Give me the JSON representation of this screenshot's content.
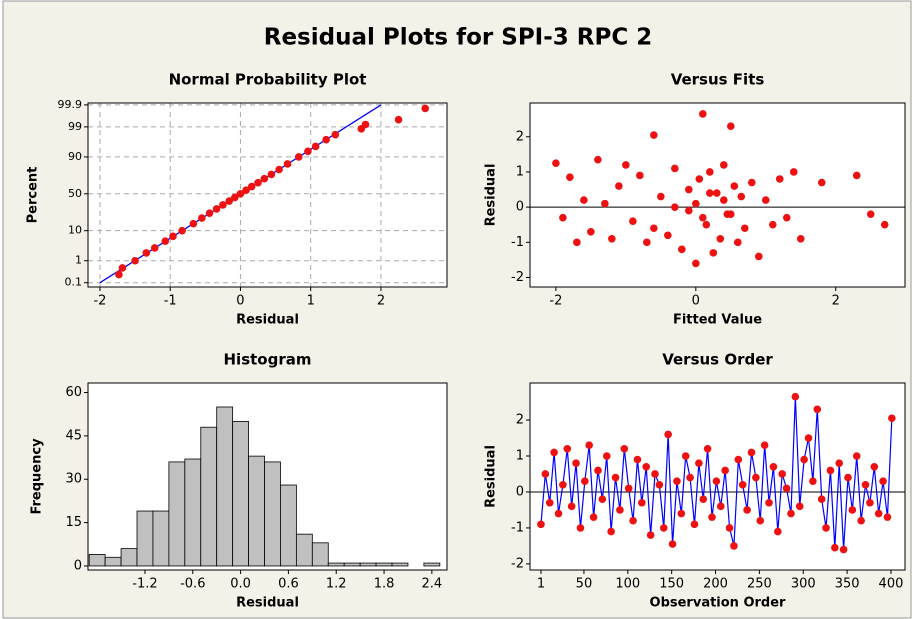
{
  "title": "Residual Plots for SPI-3 RPC 2",
  "chart_data": [
    {
      "type": "scatter",
      "title": "Normal Probability Plot",
      "x_label": "Residual",
      "y_label": "Percent",
      "yscale": "normal-probability",
      "grid": true,
      "color": "#ee1111",
      "xlim": [
        -2.17,
        2.94
      ],
      "ylim": [
        0.06,
        99.92
      ],
      "xticks": [
        -2,
        -1,
        0,
        1,
        2
      ],
      "yticks": [
        0.1,
        1,
        10,
        50,
        90,
        99,
        99.9
      ],
      "x": [
        -1.73,
        -1.68,
        -1.5,
        -1.34,
        -1.22,
        -1.07,
        -0.96,
        -0.83,
        -0.67,
        -0.55,
        -0.44,
        -0.34,
        -0.25,
        -0.16,
        -0.08,
        0.0,
        0.08,
        0.16,
        0.25,
        0.34,
        0.44,
        0.55,
        0.67,
        0.83,
        0.96,
        1.07,
        1.22,
        1.35,
        1.72,
        1.78,
        2.25,
        2.63
      ],
      "values": [
        0.25,
        0.5,
        1,
        2,
        3,
        5,
        7,
        10,
        15,
        20,
        25,
        30,
        35,
        40,
        45,
        50,
        55,
        60,
        65,
        70,
        75,
        80,
        85,
        90,
        93,
        95,
        97,
        98,
        98.8,
        99.2,
        99.5,
        99.85
      ],
      "fit_line": {
        "x": [
          -2,
          2
        ],
        "y": [
          0.1,
          99.9
        ],
        "color": "#0000ff"
      }
    },
    {
      "type": "scatter",
      "title": "Versus Fits",
      "x_label": "Fitted Value",
      "y_label": "Residual",
      "color": "#ee1111",
      "reference_line": 0,
      "xlim": [
        -2.37,
        2.99
      ],
      "ylim": [
        -2.27,
        2.96
      ],
      "xticks": [
        -2,
        0,
        2
      ],
      "yticks": [
        -2,
        -1,
        0,
        1,
        2
      ],
      "x": [
        -2.0,
        -1.9,
        -1.8,
        -1.7,
        -1.6,
        -1.5,
        -1.4,
        -1.3,
        -1.2,
        -1.1,
        -1.0,
        -0.9,
        -0.8,
        -0.7,
        -0.6,
        -0.5,
        -0.4,
        -0.3,
        -0.2,
        -0.1,
        0.0,
        0.05,
        0.1,
        0.15,
        0.2,
        0.25,
        0.3,
        0.35,
        0.4,
        0.45,
        0.5,
        0.55,
        0.6,
        0.65,
        0.7,
        0.8,
        0.9,
        1.0,
        1.1,
        1.2,
        1.3,
        1.4,
        1.5,
        1.8,
        2.3,
        2.5,
        2.7,
        -0.6,
        0.0,
        0.5,
        0.2,
        -0.3,
        0.1,
        0.4,
        -0.1
      ],
      "values": [
        1.25,
        -0.3,
        0.85,
        -1.0,
        0.2,
        -0.7,
        1.35,
        0.1,
        -0.9,
        0.6,
        1.2,
        -0.4,
        0.9,
        -1.0,
        2.05,
        0.3,
        -0.8,
        1.1,
        -1.2,
        0.5,
        -1.6,
        0.8,
        2.65,
        -0.5,
        1.0,
        -1.3,
        0.4,
        -0.9,
        1.2,
        -0.2,
        2.3,
        0.6,
        -1.0,
        0.3,
        -0.6,
        0.7,
        -1.4,
        0.2,
        -0.5,
        0.8,
        -0.3,
        1.0,
        -0.9,
        0.7,
        0.9,
        -0.2,
        -0.5,
        -0.6,
        0.1,
        -0.2,
        0.4,
        0.0,
        -0.3,
        0.2,
        -0.1
      ]
    },
    {
      "type": "histogram",
      "title": "Histogram",
      "x_label": "Residual",
      "y_label": "Frequency",
      "color": "#c0c0c0",
      "xlim": [
        -1.915,
        2.59
      ],
      "ylim": [
        -1.4,
        63.3
      ],
      "xticks": [
        -1.2,
        -0.6,
        {
          "value": 0,
          "label": "0.0"
        },
        0.6,
        1.2,
        1.8,
        2.4
      ],
      "yticks": [
        0,
        15,
        30,
        45,
        60
      ],
      "bins": [
        -1.9,
        -1.7,
        -1.5,
        -1.3,
        -1.1,
        -0.9,
        -0.7,
        -0.5,
        -0.3,
        -0.1,
        0.1,
        0.3,
        0.5,
        0.7,
        0.9,
        1.1,
        1.3,
        1.5,
        1.7,
        1.9,
        2.1,
        2.3,
        2.5
      ],
      "values": [
        4,
        3,
        6,
        19,
        19,
        36,
        37,
        48,
        55,
        50,
        38,
        36,
        28,
        11,
        8,
        1,
        1,
        1,
        1,
        1,
        0,
        1
      ]
    },
    {
      "type": "line",
      "title": "Versus Order",
      "x_label": "Observation Order",
      "y_label": "Residual",
      "color": "#ee1111",
      "line_color": "#0000ff",
      "reference_line": 0,
      "xlim": [
        -11.5,
        416
      ],
      "ylim": [
        -2.17,
        3.03
      ],
      "xticks": [
        1,
        50,
        100,
        150,
        200,
        250,
        300,
        350,
        400
      ],
      "yticks": [
        -2,
        -1,
        0,
        1,
        2
      ],
      "x": [
        1,
        6,
        11,
        16,
        21,
        26,
        31,
        36,
        41,
        46,
        51,
        56,
        61,
        66,
        71,
        76,
        81,
        86,
        91,
        96,
        101,
        106,
        111,
        116,
        121,
        126,
        131,
        136,
        141,
        146,
        151,
        156,
        161,
        166,
        171,
        176,
        181,
        186,
        191,
        196,
        201,
        206,
        211,
        216,
        221,
        226,
        231,
        236,
        241,
        246,
        251,
        256,
        261,
        266,
        271,
        276,
        281,
        286,
        291,
        296,
        301,
        306,
        311,
        316,
        321,
        326,
        331,
        336,
        341,
        346,
        351,
        356,
        361,
        366,
        371,
        376,
        381,
        386,
        391,
        396,
        401
      ],
      "values": [
        -0.9,
        0.5,
        -0.3,
        1.1,
        -0.6,
        0.2,
        1.2,
        -0.4,
        0.8,
        -1.0,
        0.3,
        1.3,
        -0.7,
        0.6,
        -0.2,
        1.0,
        -1.1,
        0.4,
        -0.5,
        1.2,
        0.1,
        -0.8,
        0.9,
        -0.3,
        0.7,
        -1.2,
        0.5,
        0.2,
        -1.0,
        1.6,
        -1.45,
        0.3,
        -0.6,
        1.0,
        0.4,
        -0.9,
        0.8,
        -0.2,
        1.2,
        -0.7,
        0.3,
        -0.4,
        0.6,
        -1.0,
        -1.5,
        0.9,
        0.2,
        -0.5,
        1.1,
        0.4,
        -0.8,
        1.3,
        -0.3,
        0.7,
        -1.1,
        0.5,
        0.1,
        -0.6,
        2.65,
        -0.4,
        0.9,
        1.5,
        0.3,
        2.3,
        -0.2,
        -1.0,
        0.6,
        -1.55,
        0.8,
        -1.6,
        0.4,
        -0.5,
        1.0,
        -0.8,
        0.2,
        -0.3,
        0.7,
        -0.6,
        0.3,
        -0.7,
        2.05
      ]
    }
  ]
}
